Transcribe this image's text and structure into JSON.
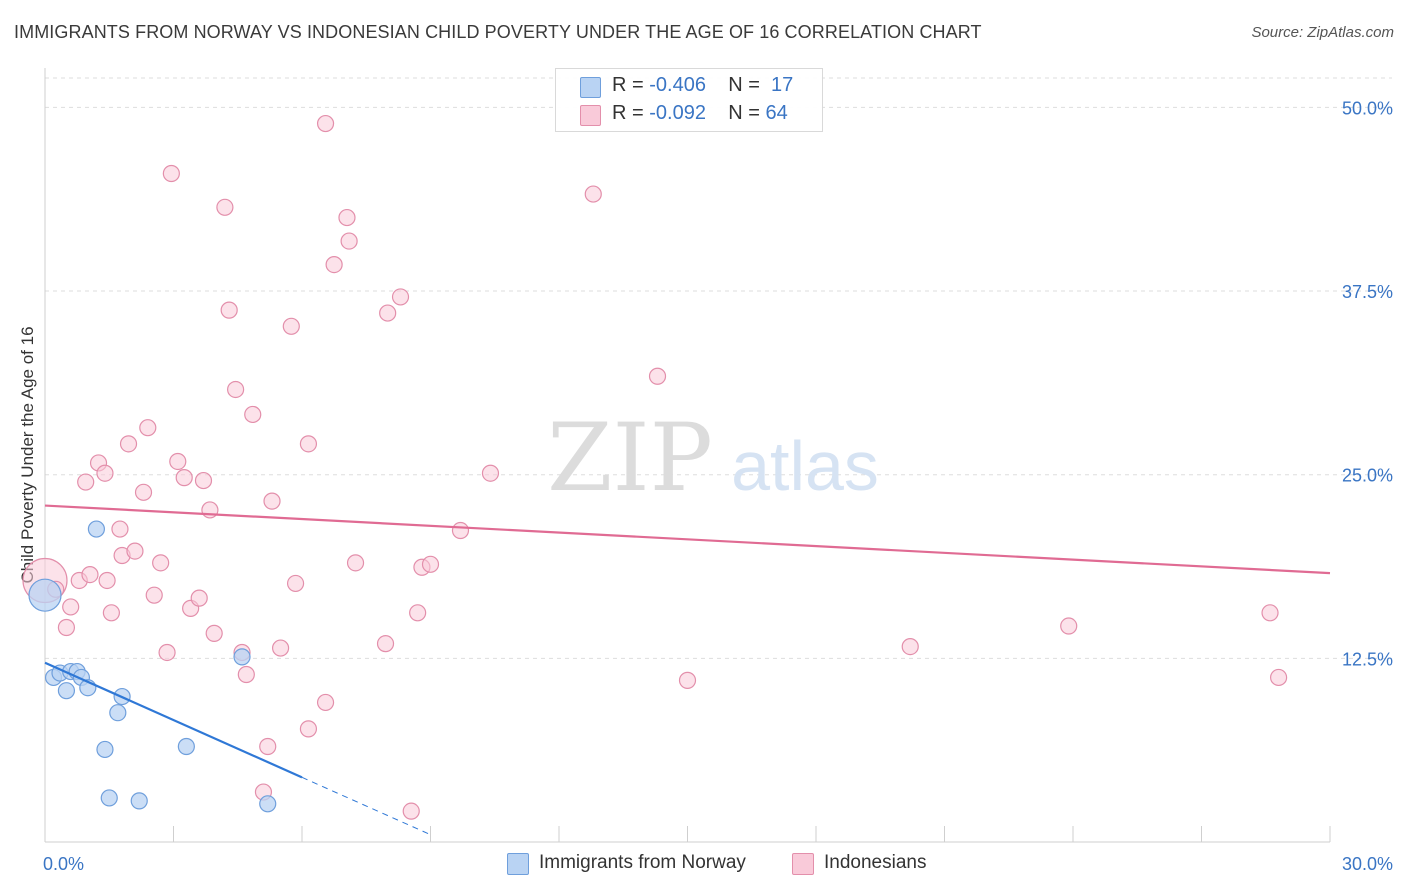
{
  "title": "IMMIGRANTS FROM NORWAY VS INDONESIAN CHILD POVERTY UNDER THE AGE OF 16 CORRELATION CHART",
  "source": "Source: ZipAtlas.com",
  "watermark": {
    "zip": "ZIP",
    "atlas": "atlas"
  },
  "legend": {
    "norway": {
      "r_label": "R =",
      "r_value": "-0.406",
      "n_label": "N =",
      "n_value": "17"
    },
    "indonesians": {
      "r_label": "R =",
      "r_value": "-0.092",
      "n_label": "N =",
      "n_value": "64"
    }
  },
  "colors": {
    "norway_fill": "#b9d3f3",
    "norway_stroke": "#6f9fdc",
    "norway_line": "#2f78d6",
    "indo_fill": "#f9cad9",
    "indo_stroke": "#e38fab",
    "indo_line": "#e06b93",
    "axis_text": "#3a75c4",
    "grid": "#dddddd"
  },
  "chart_data": {
    "type": "scatter",
    "title": "IMMIGRANTS FROM NORWAY VS INDONESIAN CHILD POVERTY UNDER THE AGE OF 16 CORRELATION CHART",
    "xlabel": "",
    "ylabel": "Child Poverty Under the Age of 16",
    "xlim": [
      0,
      30
    ],
    "ylim": [
      0,
      52
    ],
    "x_tick_labels": [
      "0.0%",
      "30.0%"
    ],
    "y_ticks": [
      12.5,
      25.0,
      37.5,
      50.0
    ],
    "y_tick_labels": [
      "12.5%",
      "25.0%",
      "37.5%",
      "50.0%"
    ],
    "series": [
      {
        "name": "Immigrants from Norway",
        "r": -0.406,
        "n": 17,
        "points": [
          [
            0.0,
            16.8
          ],
          [
            0.2,
            11.2
          ],
          [
            0.35,
            11.5
          ],
          [
            0.5,
            10.3
          ],
          [
            0.6,
            11.6
          ],
          [
            0.75,
            11.6
          ],
          [
            0.85,
            11.2
          ],
          [
            1.0,
            10.5
          ],
          [
            1.2,
            21.3
          ],
          [
            1.4,
            6.3
          ],
          [
            1.5,
            3.0
          ],
          [
            1.7,
            8.8
          ],
          [
            1.8,
            9.9
          ],
          [
            2.2,
            2.8
          ],
          [
            3.3,
            6.5
          ],
          [
            4.6,
            12.6
          ],
          [
            5.2,
            2.6
          ]
        ],
        "trend": {
          "x0": 0.0,
          "y0": 12.2,
          "x1": 6.0,
          "y1": 4.4,
          "dash_x1": 9.0,
          "dash_y1": 0.5
        }
      },
      {
        "name": "Indonesians",
        "r": -0.092,
        "n": 64,
        "points": [
          [
            0.0,
            17.8
          ],
          [
            0.25,
            17.2
          ],
          [
            0.5,
            14.6
          ],
          [
            0.6,
            16.0
          ],
          [
            0.8,
            17.8
          ],
          [
            0.95,
            24.5
          ],
          [
            1.05,
            18.2
          ],
          [
            1.25,
            25.8
          ],
          [
            1.4,
            25.1
          ],
          [
            1.45,
            17.8
          ],
          [
            1.55,
            15.6
          ],
          [
            1.75,
            21.3
          ],
          [
            1.8,
            19.5
          ],
          [
            1.95,
            27.1
          ],
          [
            2.1,
            19.8
          ],
          [
            2.3,
            23.8
          ],
          [
            2.4,
            28.2
          ],
          [
            2.55,
            16.8
          ],
          [
            2.7,
            19.0
          ],
          [
            2.85,
            12.9
          ],
          [
            2.95,
            45.5
          ],
          [
            3.1,
            25.9
          ],
          [
            3.25,
            24.8
          ],
          [
            3.4,
            15.9
          ],
          [
            3.6,
            16.6
          ],
          [
            3.7,
            24.6
          ],
          [
            3.85,
            22.6
          ],
          [
            3.95,
            14.2
          ],
          [
            4.2,
            43.2
          ],
          [
            4.3,
            36.2
          ],
          [
            4.45,
            30.8
          ],
          [
            4.6,
            12.9
          ],
          [
            4.7,
            11.4
          ],
          [
            4.85,
            29.1
          ],
          [
            5.1,
            3.4
          ],
          [
            5.2,
            6.5
          ],
          [
            5.3,
            23.2
          ],
          [
            5.5,
            13.2
          ],
          [
            5.75,
            35.1
          ],
          [
            5.85,
            17.6
          ],
          [
            6.15,
            27.1
          ],
          [
            6.15,
            7.7
          ],
          [
            6.55,
            9.5
          ],
          [
            6.55,
            48.9
          ],
          [
            6.75,
            39.3
          ],
          [
            7.05,
            42.5
          ],
          [
            7.1,
            40.9
          ],
          [
            7.25,
            19.0
          ],
          [
            7.95,
            13.5
          ],
          [
            8.0,
            36.0
          ],
          [
            8.3,
            37.1
          ],
          [
            8.55,
            2.1
          ],
          [
            8.7,
            15.6
          ],
          [
            8.8,
            18.7
          ],
          [
            9.0,
            18.9
          ],
          [
            9.7,
            21.2
          ],
          [
            10.4,
            25.1
          ],
          [
            12.8,
            44.1
          ],
          [
            14.3,
            31.7
          ],
          [
            15.0,
            11.0
          ],
          [
            20.2,
            13.3
          ],
          [
            23.9,
            14.7
          ],
          [
            28.6,
            15.6
          ],
          [
            28.8,
            11.2
          ]
        ],
        "trend": {
          "x0": 0.0,
          "y0": 22.9,
          "x1": 30.0,
          "y1": 18.3
        }
      }
    ]
  }
}
